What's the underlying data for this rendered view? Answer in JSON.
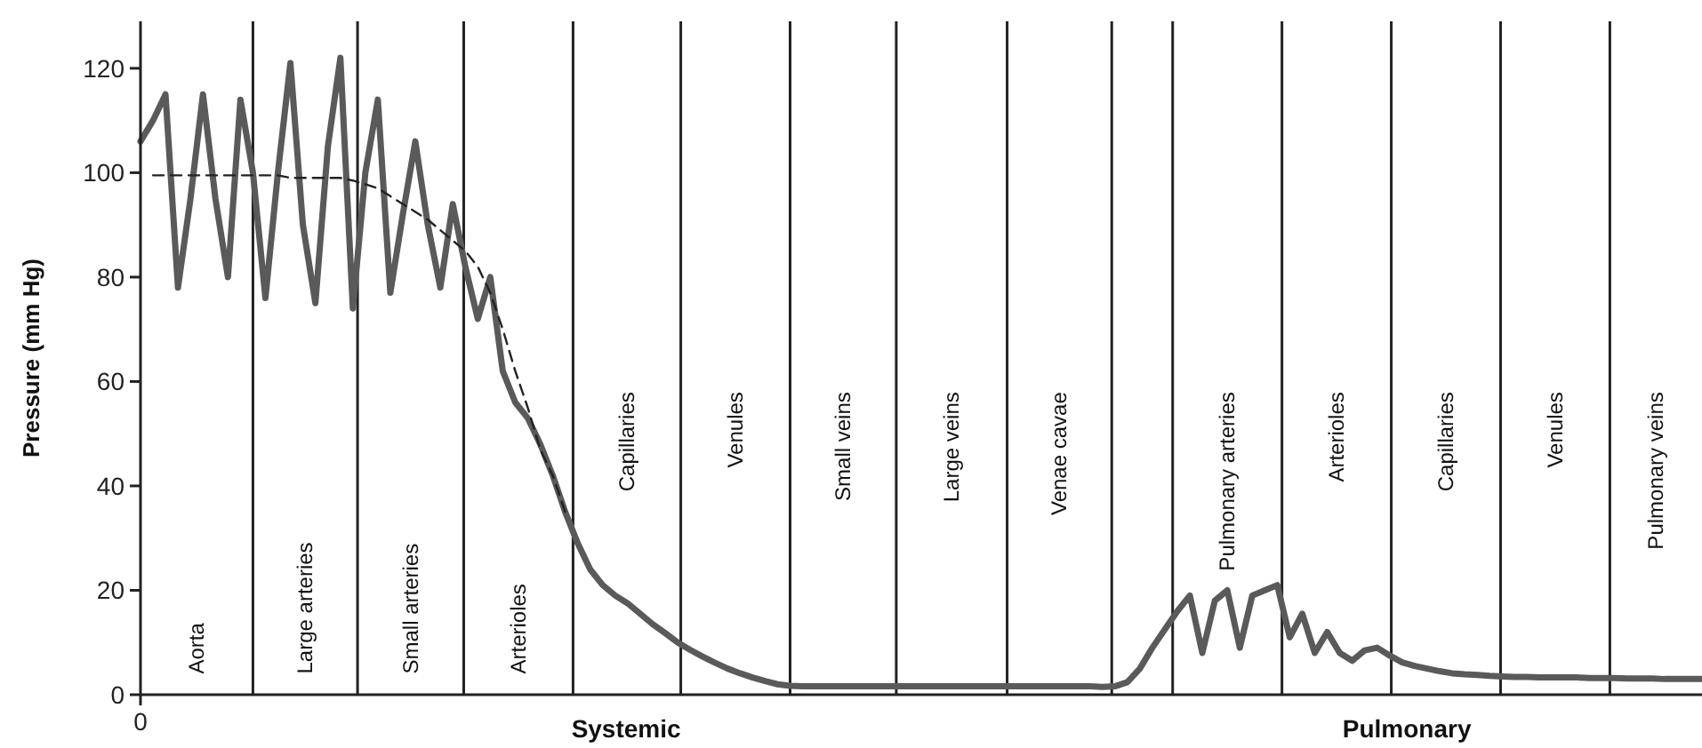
{
  "chart_data": {
    "type": "line",
    "ylabel": "Pressure (mm Hg)",
    "categories": [
      null,
      null,
      null,
      null,
      null,
      null,
      null,
      null,
      null,
      null,
      null,
      null,
      null,
      null,
      null,
      null,
      null,
      null,
      null,
      null,
      null,
      null,
      null,
      null,
      null,
      null,
      null,
      null,
      null,
      null,
      null,
      null,
      null,
      null,
      null,
      null,
      null,
      null,
      null,
      null,
      null,
      null,
      null,
      null,
      null,
      null,
      null,
      null,
      null,
      null,
      null,
      null,
      null,
      null,
      null,
      null,
      null,
      null,
      null,
      null,
      null,
      null,
      null,
      null,
      null,
      null,
      null,
      null,
      null,
      null,
      null,
      null,
      null,
      null,
      null,
      null,
      null,
      null,
      null,
      null,
      null,
      null,
      null,
      null,
      null,
      null,
      null,
      null,
      null,
      null,
      null,
      null,
      null,
      null,
      null,
      null,
      null,
      null,
      null,
      null,
      null,
      null,
      null,
      null,
      null,
      null,
      null,
      null,
      null,
      null,
      null,
      null,
      null,
      null,
      null,
      null,
      null,
      null,
      null,
      null,
      null,
      null,
      null,
      null,
      null,
      null
    ],
    "ylim": [
      0,
      129
    ],
    "yticks": [
      0,
      20,
      40,
      60,
      80,
      100,
      120
    ],
    "grid": false,
    "marker": "none",
    "series": [
      {
        "color": "#5a5a5a",
        "line_style": "solid",
        "values": [
          106,
          110,
          115,
          78,
          95,
          115,
          95,
          80,
          114,
          100,
          76,
          100,
          121,
          90,
          75,
          105,
          122,
          74,
          100,
          114,
          77,
          92,
          106,
          90,
          78,
          94,
          82,
          72,
          80,
          62,
          56,
          53,
          48,
          42,
          35,
          29,
          24,
          21,
          19,
          17.5,
          15.5,
          13.5,
          11.8,
          10,
          8.6,
          7.3,
          6.1,
          5,
          4.1,
          3.3,
          2.6,
          2,
          1.7,
          1.6,
          1.6,
          1.6,
          1.6,
          1.6,
          1.6,
          1.6,
          1.6,
          1.6,
          1.6,
          1.6,
          1.6,
          1.6,
          1.6,
          1.6,
          1.6,
          1.6,
          1.6,
          1.6,
          1.6,
          1.6,
          1.6,
          1.6,
          1.6,
          1.5,
          1.6,
          2.4,
          5,
          9,
          12.5,
          16,
          19,
          8,
          18,
          20,
          9,
          19,
          20,
          21,
          11,
          15.5,
          8,
          12,
          8,
          6.5,
          8.5,
          9,
          7.5,
          6.2,
          5.5,
          5,
          4.5,
          4.1,
          3.9,
          3.8,
          3.6,
          3.5,
          3.4,
          3.4,
          3.3,
          3.3,
          3.3,
          3.3,
          3.2,
          3.2,
          3.2,
          3.1,
          3.1,
          3.1,
          3,
          3,
          3,
          3
        ]
      },
      {
        "color": "#222222",
        "line_style": "dashed",
        "values": [
          null,
          99.5,
          99.5,
          99.5,
          99.5,
          99.5,
          99.5,
          99.5,
          99.5,
          99.5,
          99.5,
          99.5,
          99,
          99,
          99,
          99,
          99,
          98.5,
          97.8,
          97,
          95.5,
          94,
          92.5,
          91,
          89,
          87,
          85,
          82,
          77,
          70,
          62,
          55,
          47,
          42,
          35,
          null,
          null,
          null,
          null,
          null,
          null,
          null,
          null,
          null,
          null,
          null,
          null,
          null,
          null,
          null,
          null,
          null,
          null,
          null,
          null,
          null,
          null,
          null,
          null,
          null,
          null,
          null,
          null,
          null,
          null,
          null,
          null,
          null,
          null,
          null,
          null,
          null,
          null,
          null,
          null,
          null,
          null,
          null,
          null,
          null,
          null,
          null,
          null,
          null,
          null,
          null,
          null,
          null,
          null,
          null,
          null,
          null,
          null,
          null,
          null,
          null,
          null,
          null,
          null,
          null,
          null,
          null,
          null,
          null,
          null,
          null,
          null,
          null,
          null,
          null,
          null,
          null,
          null,
          null,
          null,
          null,
          null,
          null,
          null,
          null,
          null,
          null,
          null,
          null,
          null,
          null
        ]
      }
    ],
    "annotations": [
      "Aorta",
      "Large arteries",
      "Small arteries",
      "Arterioles",
      "Capillaries",
      "Venules",
      "Small veins",
      "Large veins",
      "Venae cavae",
      "Pulmonary arteries",
      "Arterioles",
      "Capillaries",
      "Venules",
      "Pulmonary veins",
      "0",
      "Systemic",
      "Pulmonary"
    ]
  }
}
